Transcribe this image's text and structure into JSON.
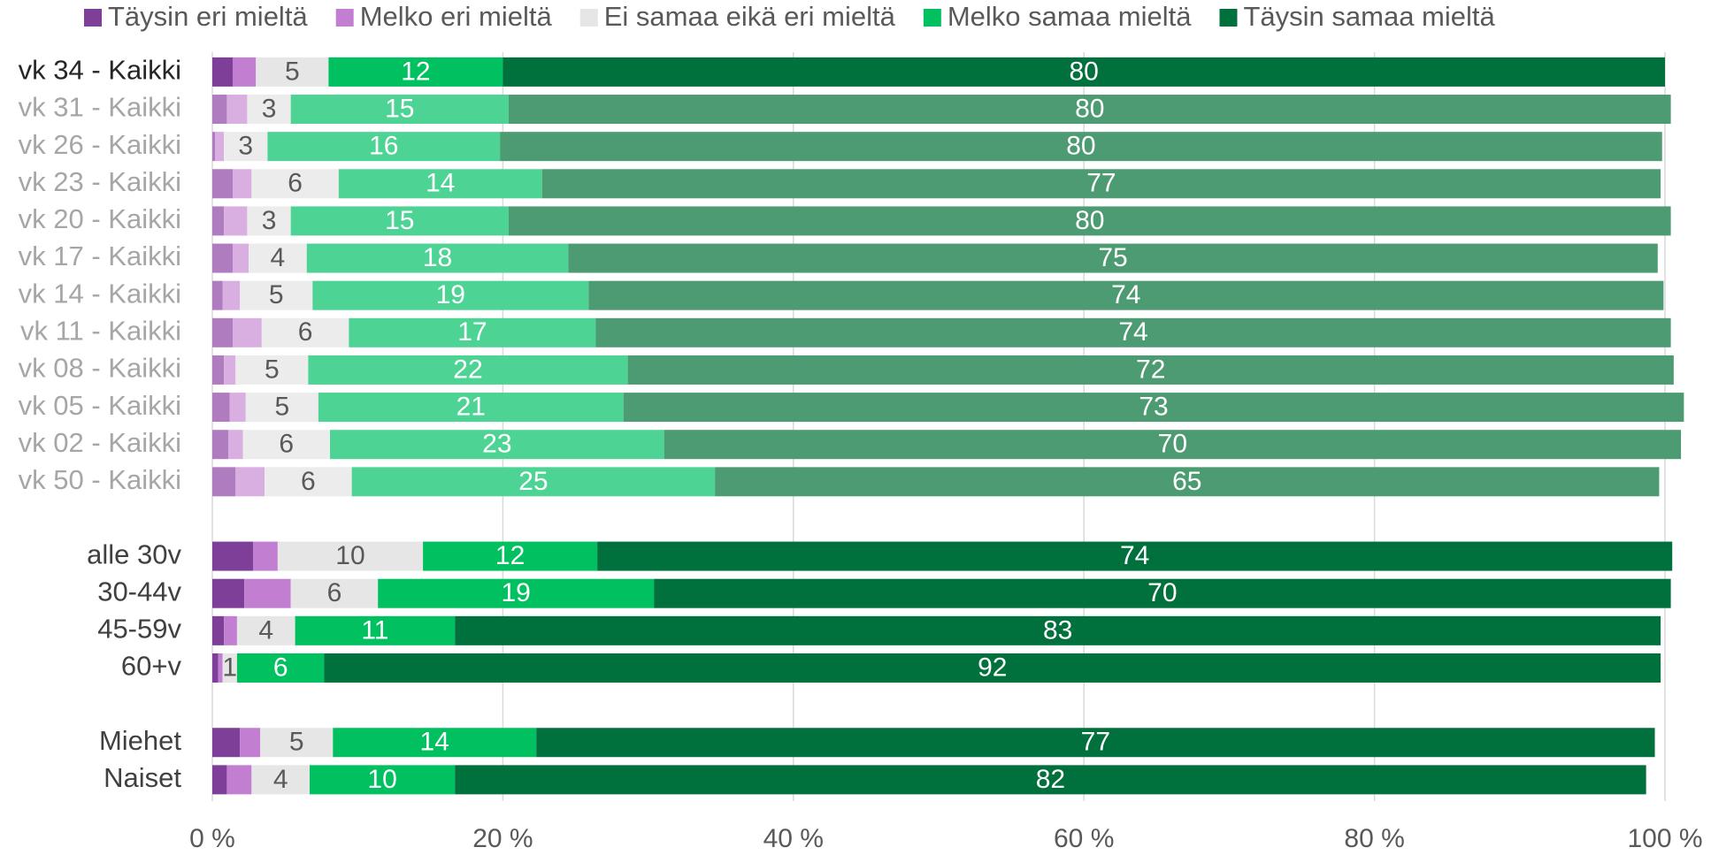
{
  "chart_data": {
    "type": "stacked_barh",
    "categories": [
      "vk 34 - Kaikki",
      "vk 31 - Kaikki",
      "vk 26 - Kaikki",
      "vk 23 - Kaikki",
      "vk 20 - Kaikki",
      "vk 17 - Kaikki",
      "vk 14 - Kaikki",
      "vk 11 - Kaikki",
      "vk 08 - Kaikki",
      "vk 05 - Kaikki",
      "vk 02 - Kaikki",
      "vk 50 - Kaikki",
      null,
      "alle 30v",
      "30-44v",
      "45-59v",
      "60+v",
      null,
      "Miehet",
      "Naiset"
    ],
    "category_colors": [
      "#262626",
      "#a6a6a6",
      "#a6a6a6",
      "#a6a6a6",
      "#a6a6a6",
      "#a6a6a6",
      "#a6a6a6",
      "#a6a6a6",
      "#a6a6a6",
      "#a6a6a6",
      "#a6a6a6",
      "#a6a6a6",
      null,
      "#404040",
      "#404040",
      "#404040",
      "#404040",
      null,
      "#404040",
      "#404040"
    ],
    "series": [
      {
        "name": "Täysin eri mieltä",
        "color": "#7e3f98",
        "show_labels": false,
        "label_color": "#595959",
        "colors": [
          "#7e3f98",
          "#b07cc0",
          "#b07cc0",
          "#b07cc0",
          "#b07cc0",
          "#b07cc0",
          "#b07cc0",
          "#b07cc0",
          "#b07cc0",
          "#b07cc0",
          "#b07cc0",
          "#b07cc0",
          null,
          "#7e3f98",
          "#7e3f98",
          "#7e3f98",
          "#7e3f98",
          null,
          "#7e3f98",
          "#7e3f98"
        ],
        "values": [
          1.4,
          1,
          0.2,
          1.4,
          0.8,
          1.4,
          0.7,
          1.4,
          0.8,
          1.2,
          1.1,
          1.6,
          null,
          2.8,
          2.2,
          0.8,
          0.4,
          null,
          1.9,
          1
        ]
      },
      {
        "name": "Melko eri mieltä",
        "color": "#c27fd1",
        "show_labels": false,
        "label_color": "#595959",
        "colors": [
          "#c27fd1",
          "#d9aee0",
          "#d9aee0",
          "#d9aee0",
          "#d9aee0",
          "#d9aee0",
          "#d9aee0",
          "#d9aee0",
          "#d9aee0",
          "#d9aee0",
          "#d9aee0",
          "#d9aee0",
          null,
          "#c27fd1",
          "#c27fd1",
          "#c27fd1",
          "#c27fd1",
          null,
          "#c27fd1",
          "#c27fd1"
        ],
        "values": [
          1.6,
          1.4,
          0.6,
          1.3,
          1.6,
          1.1,
          1.2,
          2,
          0.8,
          1.1,
          1,
          2,
          null,
          1.7,
          3.2,
          0.9,
          0.3,
          null,
          1.4,
          1.7
        ]
      },
      {
        "name": "Ei samaa eikä eri mieltä",
        "color": "#e6e6e6",
        "show_labels": true,
        "label_color": "#595959",
        "colors": [
          "#e6e6e6",
          "#ececec",
          "#ececec",
          "#ececec",
          "#ececec",
          "#ececec",
          "#ececec",
          "#ececec",
          "#ececec",
          "#ececec",
          "#ececec",
          "#ececec",
          null,
          "#e6e6e6",
          "#e6e6e6",
          "#e6e6e6",
          "#e6e6e6",
          null,
          "#e6e6e6",
          "#e6e6e6"
        ],
        "values": [
          5,
          3,
          3,
          6,
          3,
          4,
          5,
          6,
          5,
          5,
          6,
          6,
          null,
          10,
          6,
          4,
          1,
          null,
          5,
          4
        ]
      },
      {
        "name": "Melko samaa mieltä",
        "color": "#00c060",
        "show_labels": true,
        "label_color": "#ffffff",
        "colors": [
          "#00c060",
          "#4dd494",
          "#4dd494",
          "#4dd494",
          "#4dd494",
          "#4dd494",
          "#4dd494",
          "#4dd494",
          "#4dd494",
          "#4dd494",
          "#4dd494",
          "#4dd494",
          null,
          "#00c060",
          "#00c060",
          "#00c060",
          "#00c060",
          null,
          "#00c060",
          "#00c060"
        ],
        "values": [
          12,
          15,
          16,
          14,
          15,
          18,
          19,
          17,
          22,
          21,
          23,
          25,
          null,
          12,
          19,
          11,
          6,
          null,
          14,
          10
        ]
      },
      {
        "name": "Täysin samaa mieltä",
        "color": "#00703c",
        "show_labels": true,
        "label_color": "#ffffff",
        "colors": [
          "#00703c",
          "#4d9b72",
          "#4d9b72",
          "#4d9b72",
          "#4d9b72",
          "#4d9b72",
          "#4d9b72",
          "#4d9b72",
          "#4d9b72",
          "#4d9b72",
          "#4d9b72",
          "#4d9b72",
          null,
          "#00703c",
          "#00703c",
          "#00703c",
          "#00703c",
          null,
          "#00703c",
          "#00703c"
        ],
        "values": [
          80,
          80,
          80,
          77,
          80,
          75,
          74,
          74,
          72,
          73,
          70,
          65,
          null,
          74,
          70,
          83,
          92,
          null,
          77,
          82
        ]
      }
    ],
    "xlim": [
      0,
      100
    ],
    "xticks": [
      {
        "value": 0,
        "label": "0 %"
      },
      {
        "value": 20,
        "label": "20 %"
      },
      {
        "value": 40,
        "label": "40 %"
      },
      {
        "value": 60,
        "label": "60 %"
      },
      {
        "value": 80,
        "label": "80 %"
      },
      {
        "value": 100,
        "label": "100 %"
      }
    ],
    "grid": true,
    "legend": "top"
  }
}
